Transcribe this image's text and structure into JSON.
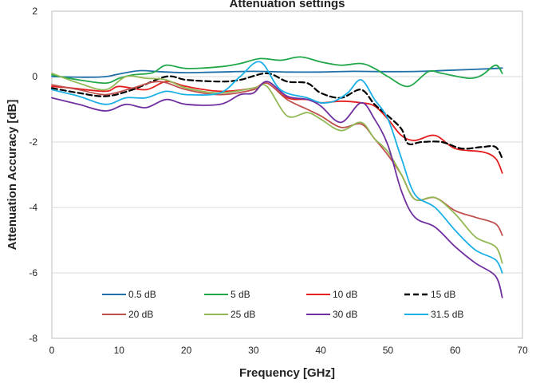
{
  "chart_data": {
    "type": "line",
    "title": "Attenuation settings",
    "xlabel": "Frequency [GHz]",
    "ylabel": "Attenuation Accuracy [dB]",
    "xlim": [
      0,
      70
    ],
    "ylim": [
      -8,
      2
    ],
    "xticks": [
      0,
      10,
      20,
      30,
      40,
      50,
      60,
      70
    ],
    "yticks": [
      -8,
      -6,
      -4,
      -2,
      0,
      2
    ],
    "grid": "horizontal",
    "legend_position": "inside-bottom",
    "series": [
      {
        "name": "0.5 dB",
        "color": "#1f6fa8",
        "dash": false,
        "x": [
          0,
          5,
          8,
          10,
          13,
          16,
          20,
          25,
          30,
          35,
          40,
          45,
          50,
          55,
          60,
          65,
          67
        ],
        "y": [
          0.0,
          -0.02,
          0.0,
          0.08,
          0.18,
          0.15,
          0.12,
          0.14,
          0.16,
          0.14,
          0.14,
          0.16,
          0.15,
          0.16,
          0.2,
          0.24,
          0.26
        ]
      },
      {
        "name": "5 dB",
        "color": "#22a84a",
        "dash": false,
        "x": [
          0,
          4,
          8,
          10,
          12,
          15,
          17,
          20,
          25,
          28,
          31,
          34,
          37,
          40,
          43,
          46,
          48,
          50,
          53,
          56,
          58,
          62,
          64,
          66,
          67
        ],
        "y": [
          0.05,
          -0.1,
          -0.2,
          -0.05,
          0.05,
          0.12,
          0.35,
          0.25,
          0.3,
          0.4,
          0.55,
          0.5,
          0.6,
          0.45,
          0.35,
          0.4,
          0.25,
          0.0,
          -0.3,
          0.15,
          0.1,
          -0.05,
          0.05,
          0.35,
          0.1
        ]
      },
      {
        "name": "10 dB",
        "color": "#e51e1e",
        "dash": false,
        "x": [
          0,
          3,
          8,
          10,
          14,
          17,
          20,
          25,
          30,
          32,
          35,
          38,
          40,
          43,
          46,
          48,
          50,
          52,
          54,
          57,
          60,
          64,
          66,
          67
        ],
        "y": [
          -0.3,
          -0.35,
          -0.45,
          -0.3,
          -0.4,
          -0.15,
          -0.3,
          -0.45,
          -0.35,
          -0.2,
          -0.65,
          -0.7,
          -0.8,
          -0.75,
          -0.8,
          -0.9,
          -1.3,
          -1.8,
          -1.95,
          -1.8,
          -2.2,
          -2.3,
          -2.5,
          -2.95
        ]
      },
      {
        "name": "15 dB",
        "color": "#000000",
        "dash": true,
        "x": [
          0,
          4,
          8,
          12,
          17,
          20,
          25,
          28,
          32,
          35,
          38,
          40,
          43,
          46,
          48,
          50,
          52,
          53,
          55,
          58,
          61,
          64,
          66,
          67
        ],
        "y": [
          -0.35,
          -0.5,
          -0.6,
          -0.4,
          0.0,
          -0.1,
          -0.15,
          -0.1,
          0.1,
          -0.15,
          -0.2,
          -0.5,
          -0.65,
          -0.4,
          -0.85,
          -1.2,
          -1.6,
          -2.05,
          -2.0,
          -2.0,
          -2.2,
          -2.15,
          -2.15,
          -2.5
        ]
      },
      {
        "name": "20 dB",
        "color": "#c0504d",
        "dash": false,
        "x": [
          0,
          4,
          8,
          12,
          16,
          20,
          25,
          30,
          32,
          35,
          38,
          40,
          43,
          46,
          48,
          50,
          52,
          54,
          57,
          60,
          63,
          66,
          67
        ],
        "y": [
          -0.25,
          -0.4,
          -0.55,
          -0.35,
          -0.15,
          -0.4,
          -0.55,
          -0.4,
          -0.2,
          -0.7,
          -1.0,
          -1.2,
          -1.55,
          -1.45,
          -1.9,
          -2.4,
          -3.0,
          -3.75,
          -3.7,
          -4.1,
          -4.3,
          -4.5,
          -4.85
        ]
      },
      {
        "name": "25 dB",
        "color": "#92b955",
        "dash": false,
        "x": [
          0,
          4,
          8,
          11,
          14,
          17,
          20,
          25,
          30,
          32,
          35,
          38,
          40,
          43,
          46,
          48,
          50,
          52,
          54,
          57,
          60,
          63,
          66,
          67
        ],
        "y": [
          0.1,
          -0.2,
          -0.4,
          0.0,
          -0.05,
          -0.1,
          -0.35,
          -0.5,
          -0.35,
          -0.3,
          -1.2,
          -1.1,
          -1.3,
          -1.65,
          -1.4,
          -1.9,
          -2.3,
          -3.0,
          -3.75,
          -3.7,
          -4.2,
          -4.9,
          -5.2,
          -5.7
        ]
      },
      {
        "name": "30 dB",
        "color": "#7030a0",
        "dash": false,
        "x": [
          0,
          4,
          8,
          11,
          14,
          17,
          20,
          25,
          28,
          30,
          32,
          35,
          38,
          40,
          43,
          46,
          48,
          50,
          52,
          54,
          57,
          60,
          63,
          66,
          67
        ],
        "y": [
          -0.65,
          -0.85,
          -1.05,
          -0.85,
          -0.95,
          -0.7,
          -0.85,
          -0.85,
          -0.55,
          -0.5,
          -0.15,
          -0.6,
          -0.7,
          -0.9,
          -1.4,
          -0.8,
          -1.3,
          -2.1,
          -3.5,
          -4.3,
          -4.6,
          -5.2,
          -5.7,
          -6.1,
          -6.75
        ]
      },
      {
        "name": "31.5 dB",
        "color": "#1ab0e6",
        "dash": false,
        "x": [
          0,
          4,
          8,
          11,
          14,
          17,
          20,
          25,
          28,
          31,
          34,
          38,
          40,
          42,
          44,
          46,
          48,
          50,
          52,
          54,
          57,
          60,
          63,
          66,
          67
        ],
        "y": [
          -0.4,
          -0.6,
          -0.85,
          -0.65,
          -0.65,
          -0.45,
          -0.55,
          -0.5,
          0.0,
          0.45,
          -0.4,
          -0.65,
          -0.8,
          -0.75,
          -0.5,
          -0.1,
          -0.7,
          -1.3,
          -2.5,
          -3.6,
          -4.0,
          -4.7,
          -5.3,
          -5.6,
          -6.0
        ]
      }
    ]
  }
}
